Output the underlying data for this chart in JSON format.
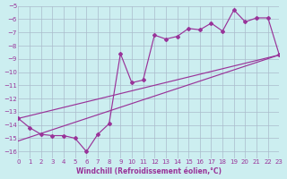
{
  "xlabel": "Windchill (Refroidissement éolien,°C)",
  "bg_color": "#cceef0",
  "grid_color": "#aabbcc",
  "line_color": "#993399",
  "xlim": [
    0,
    23
  ],
  "ylim": [
    -5,
    -16.5
  ],
  "yticks": [
    -5,
    -6,
    -7,
    -8,
    -9,
    -10,
    -11,
    -12,
    -13,
    -14,
    -15,
    -16
  ],
  "xticks": [
    0,
    1,
    2,
    3,
    4,
    5,
    6,
    7,
    8,
    9,
    10,
    11,
    12,
    13,
    14,
    15,
    16,
    17,
    18,
    19,
    20,
    21,
    22,
    23
  ],
  "data_x": [
    0,
    1,
    2,
    3,
    4,
    5,
    6,
    7,
    8,
    9,
    10,
    11,
    12,
    13,
    14,
    15,
    16,
    17,
    18,
    19,
    20,
    21,
    22,
    23
  ],
  "data_y": [
    -13.5,
    -14.2,
    -14.7,
    -14.8,
    -14.8,
    -15.0,
    -16.0,
    -14.7,
    -13.9,
    -8.6,
    -10.8,
    -10.6,
    -7.2,
    -7.5,
    -7.3,
    -6.7,
    -6.8,
    -6.3,
    -6.9,
    -5.3,
    -6.2,
    -5.9,
    -5.9,
    -8.7
  ],
  "trend1_x": [
    0,
    23
  ],
  "trend1_y": [
    -13.5,
    -8.7
  ],
  "trend2_x": [
    0,
    23
  ],
  "trend2_y": [
    -15.2,
    -8.7
  ],
  "tick_fontsize": 5,
  "xlabel_fontsize": 5.5
}
